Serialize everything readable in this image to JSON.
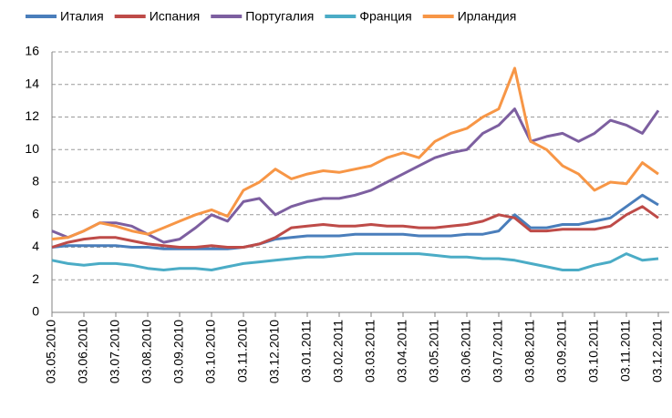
{
  "chart_data": {
    "type": "line",
    "categories": [
      "03.05.2010",
      null,
      "03.06.2010",
      null,
      "03.07.2010",
      null,
      "03.08.2010",
      null,
      "03.09.2010",
      null,
      "03.10.2010",
      null,
      "03.11.2010",
      null,
      "03.12.2010",
      null,
      "03.01.2011",
      null,
      "03.02.2011",
      null,
      "03.03.2011",
      null,
      "03.04.2011",
      null,
      "03.05.2011",
      null,
      "03.06.2011",
      null,
      "03.07.2011",
      null,
      "03.08.2011",
      null,
      "03.09.2011",
      null,
      "03.10.2011",
      null,
      "03.11.2011",
      null,
      "03.12.2011"
    ],
    "series": [
      {
        "name": "Италия",
        "color": "#4a7ebb",
        "values": [
          4.0,
          4.1,
          4.1,
          4.1,
          4.1,
          4.0,
          4.0,
          3.9,
          3.9,
          3.9,
          3.9,
          3.9,
          4.0,
          4.2,
          4.5,
          4.6,
          4.7,
          4.7,
          4.7,
          4.8,
          4.8,
          4.8,
          4.8,
          4.7,
          4.7,
          4.7,
          4.8,
          4.8,
          5.0,
          6.0,
          5.2,
          5.2,
          5.4,
          5.4,
          5.6,
          5.8,
          6.5,
          7.2,
          6.6
        ]
      },
      {
        "name": "Испания",
        "color": "#be4b48",
        "values": [
          4.0,
          4.3,
          4.5,
          4.6,
          4.6,
          4.4,
          4.2,
          4.1,
          4.0,
          4.0,
          4.1,
          4.0,
          4.0,
          4.2,
          4.6,
          5.2,
          5.3,
          5.4,
          5.3,
          5.3,
          5.4,
          5.3,
          5.3,
          5.2,
          5.2,
          5.3,
          5.4,
          5.6,
          6.0,
          5.8,
          5.0,
          5.0,
          5.1,
          5.1,
          5.1,
          5.3,
          6.0,
          6.5,
          5.8
        ]
      },
      {
        "name": "Португалия",
        "color": "#7d5fa0",
        "values": [
          5.0,
          4.6,
          5.0,
          5.5,
          5.5,
          5.3,
          4.8,
          4.3,
          4.5,
          5.2,
          6.0,
          5.6,
          6.8,
          7.0,
          6.0,
          6.5,
          6.8,
          7.0,
          7.0,
          7.2,
          7.5,
          8.0,
          8.5,
          9.0,
          9.5,
          9.8,
          10.0,
          11.0,
          11.5,
          12.5,
          10.5,
          10.8,
          11.0,
          10.5,
          11.0,
          11.8,
          11.5,
          11.0,
          12.4
        ]
      },
      {
        "name": "Франция",
        "color": "#4bacc6",
        "values": [
          3.2,
          3.0,
          2.9,
          3.0,
          3.0,
          2.9,
          2.7,
          2.6,
          2.7,
          2.7,
          2.6,
          2.8,
          3.0,
          3.1,
          3.2,
          3.3,
          3.4,
          3.4,
          3.5,
          3.6,
          3.6,
          3.6,
          3.6,
          3.6,
          3.5,
          3.4,
          3.4,
          3.3,
          3.3,
          3.2,
          3.0,
          2.8,
          2.6,
          2.6,
          2.9,
          3.1,
          3.6,
          3.2,
          3.3
        ]
      },
      {
        "name": "Ирландия",
        "color": "#f79646",
        "values": [
          4.5,
          4.6,
          5.0,
          5.5,
          5.3,
          5.0,
          4.8,
          5.2,
          5.6,
          6.0,
          6.3,
          5.9,
          7.5,
          8.0,
          8.8,
          8.2,
          8.5,
          8.7,
          8.6,
          8.8,
          9.0,
          9.5,
          9.8,
          9.5,
          10.5,
          11.0,
          11.3,
          12.0,
          12.5,
          15.0,
          10.5,
          10.0,
          9.0,
          8.5,
          7.5,
          8.0,
          7.9,
          9.2,
          8.5
        ]
      }
    ],
    "ylim": [
      0,
      16
    ],
    "yticks": [
      0,
      2,
      4,
      6,
      8,
      10,
      12,
      14,
      16
    ],
    "grid": true,
    "legend": "top"
  }
}
